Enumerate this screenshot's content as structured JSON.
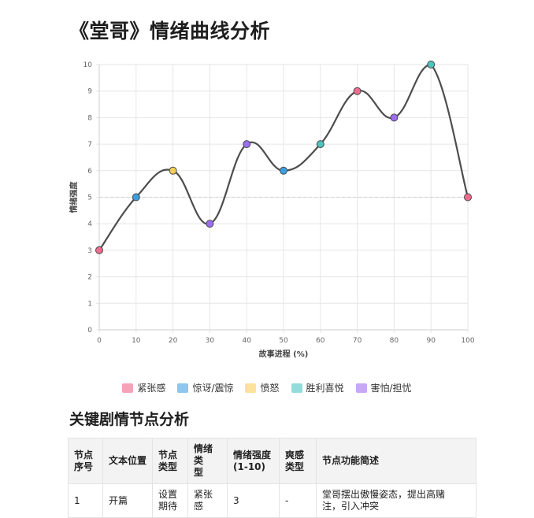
{
  "page": {
    "title": "《堂哥》情绪曲线分析"
  },
  "chart_data": {
    "type": "line",
    "title": "",
    "xlabel": "故事进程 (%)",
    "ylabel": "情绪强度",
    "x": [
      0,
      10,
      20,
      30,
      40,
      50,
      60,
      70,
      80,
      90,
      100
    ],
    "y": [
      3,
      5,
      6,
      4,
      7,
      6,
      7,
      9,
      8,
      10,
      5
    ],
    "point_emotions": [
      "紧张感",
      "惊讶/震惊",
      "愤怒",
      "害怕/担忧",
      "害怕/担忧",
      "惊讶/震惊",
      "胜利喜悦",
      "紧张感",
      "害怕/担忧",
      "胜利喜悦",
      "紧张感"
    ],
    "xlim": [
      0,
      100
    ],
    "ylim": [
      0,
      10
    ],
    "xticks": [
      "0",
      "10",
      "20",
      "30",
      "40",
      "50",
      "60",
      "70",
      "80",
      "90",
      "100"
    ],
    "yticks": [
      "0",
      "1",
      "2",
      "3",
      "4",
      "5",
      "6",
      "7",
      "8",
      "9",
      "10"
    ],
    "reference_line_y": 5,
    "grid": true,
    "legend_position": "bottom",
    "line_color": "#4d4d4d",
    "legend": [
      {
        "label": "紧张感",
        "color": "#f4a3b8",
        "point_color": "#f06c8f"
      },
      {
        "label": "惊讶/震惊",
        "color": "#8ec6ef",
        "point_color": "#3c9ee0"
      },
      {
        "label": "愤怒",
        "color": "#fce29a",
        "point_color": "#f7cf57"
      },
      {
        "label": "胜利喜悦",
        "color": "#94dcd9",
        "point_color": "#4ec3bd"
      },
      {
        "label": "害怕/担忧",
        "color": "#c7a8f6",
        "point_color": "#9c6ef0"
      }
    ]
  },
  "section": {
    "title": "关键剧情节点分析"
  },
  "table": {
    "headers": [
      "节点\n序号",
      "文本位置",
      "节点\n类型",
      "情绪类\n型",
      "情绪强度\n(1-10)",
      "爽感\n类型",
      "节点功能简述"
    ],
    "rows": [
      [
        "1",
        "开篇",
        "设置\n期待",
        "紧张感",
        "3",
        "-",
        "堂哥摆出傲慢姿态，提出高赌\n注，引入冲突"
      ]
    ]
  }
}
